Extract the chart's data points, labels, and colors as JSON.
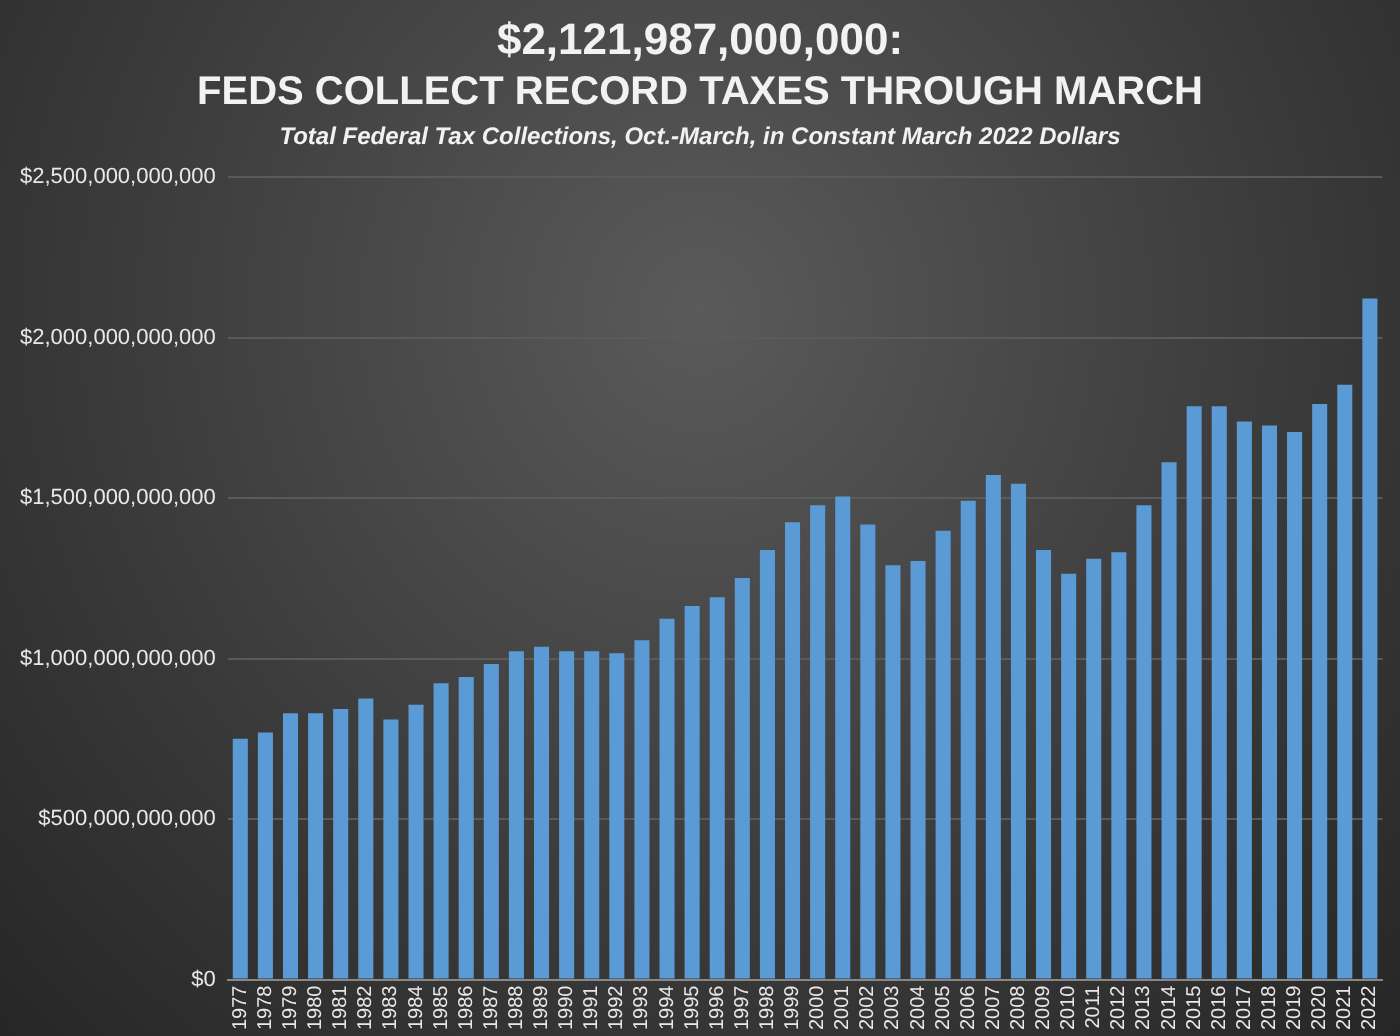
{
  "chart_data": {
    "type": "bar",
    "title": "$2,121,987,000,000:\nFEDS COLLECT RECORD TAXES THROUGH MARCH",
    "subtitle": "Total Federal Tax Collections, Oct.-March, in Constant March 2022 Dollars",
    "categories": [
      "1977",
      "1978",
      "1979",
      "1980",
      "1981",
      "1982",
      "1983",
      "1984",
      "1985",
      "1986",
      "1987",
      "1988",
      "1989",
      "1990",
      "1991",
      "1992",
      "1993",
      "1994",
      "1995",
      "1996",
      "1997",
      "1998",
      "1999",
      "2000",
      "2001",
      "2002",
      "2003",
      "2004",
      "2005",
      "2006",
      "2007",
      "2008",
      "2009",
      "2010",
      "2011",
      "2012",
      "2013",
      "2014",
      "2015",
      "2016",
      "2017",
      "2018",
      "2019",
      "2020",
      "2021",
      "2022"
    ],
    "values": [
      750000000000,
      770000000000,
      830000000000,
      830000000000,
      843000000000,
      876000000000,
      810000000000,
      856000000000,
      923000000000,
      943000000000,
      983000000000,
      1023000000000,
      1037000000000,
      1023000000000,
      1023000000000,
      1017000000000,
      1057000000000,
      1124000000000,
      1164000000000,
      1191000000000,
      1251000000000,
      1338000000000,
      1425000000000,
      1478000000000,
      1505000000000,
      1418000000000,
      1291000000000,
      1304000000000,
      1398000000000,
      1492000000000,
      1572000000000,
      1545000000000,
      1338000000000,
      1264000000000,
      1311000000000,
      1331000000000,
      1478000000000,
      1612000000000,
      1786000000000,
      1786000000000,
      1739000000000,
      1726000000000,
      1706000000000,
      1793000000000,
      1853000000000,
      2122000000000
    ],
    "color": "#5b9bd5",
    "ylim": [
      0,
      2500000000000
    ],
    "yticks": [
      {
        "value": 0,
        "label": "$0"
      },
      {
        "value": 500000000000,
        "label": "$500,000,000,000"
      },
      {
        "value": 1000000000000,
        "label": "$1,000,000,000,000"
      },
      {
        "value": 1500000000000,
        "label": "$1,500,000,000,000"
      },
      {
        "value": 2000000000000,
        "label": "$2,000,000,000,000"
      },
      {
        "value": 2500000000000,
        "label": "$2,500,000,000,000"
      }
    ],
    "grid": "y"
  }
}
